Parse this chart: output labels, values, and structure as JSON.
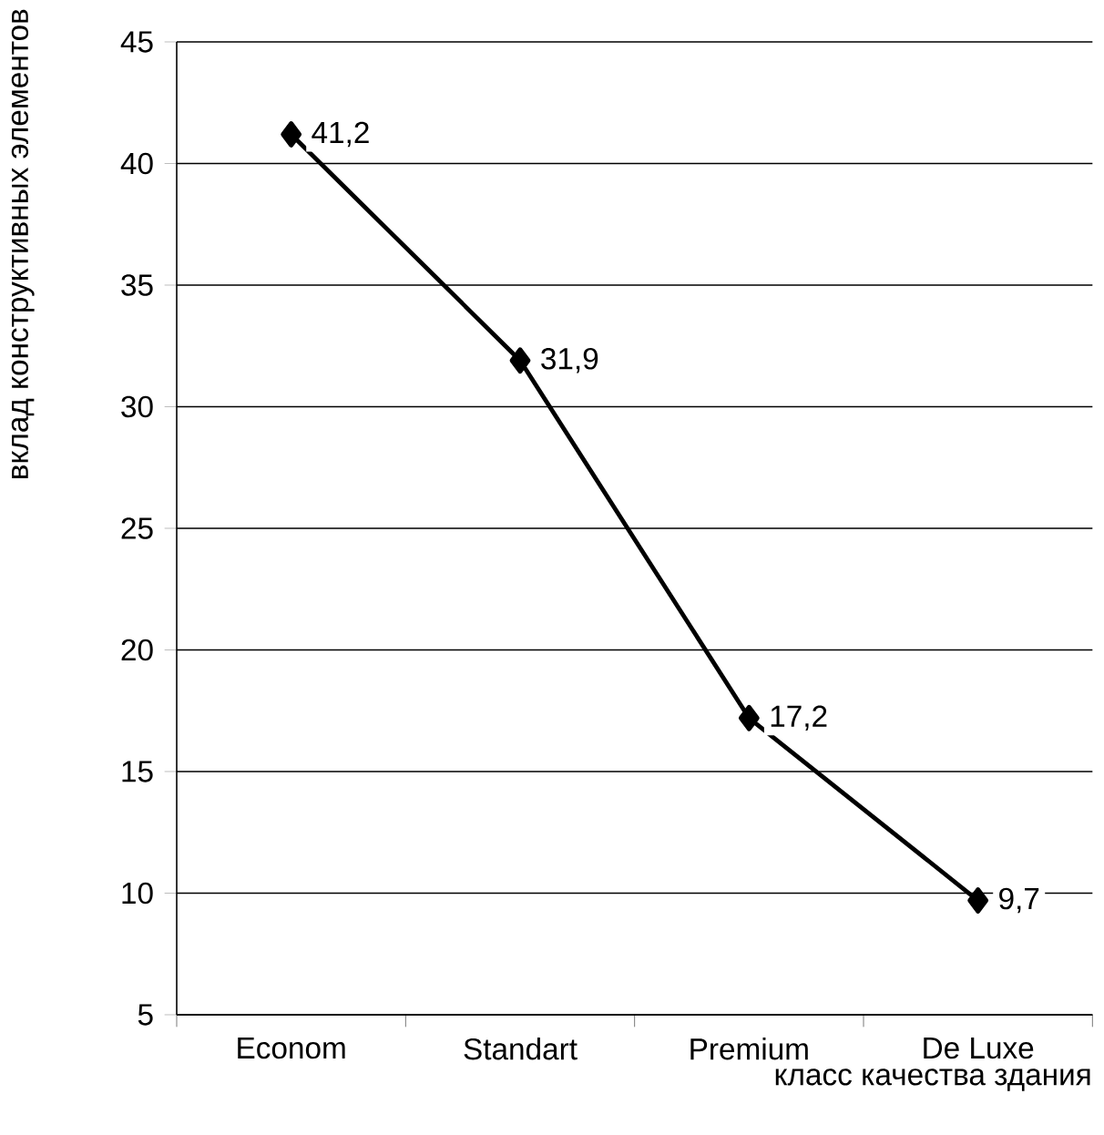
{
  "chart_data": {
    "type": "line",
    "xlabel": "класс качества здания",
    "ylabel": "вклад конструктивных элементов",
    "categories": [
      "Econom",
      "Standart",
      "Premium",
      "De Luxe"
    ],
    "values": [
      41.2,
      31.9,
      17.2,
      9.7
    ],
    "value_labels": [
      "41,2",
      "31,9",
      "17,2",
      "9,7"
    ],
    "color": "#000000",
    "marker": "diamond",
    "line_style": "solid",
    "ylim": [
      5,
      45
    ],
    "yticks": [
      5,
      10,
      15,
      20,
      25,
      30,
      35,
      40,
      45
    ],
    "grid": "y"
  }
}
